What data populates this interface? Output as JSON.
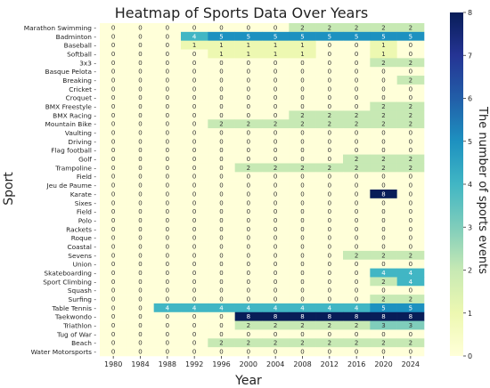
{
  "chart_data": {
    "type": "heatmap",
    "title": "Heatmap of Sports Data Over Years",
    "xlabel": "Year",
    "ylabel": "Sport",
    "colorbar_label": "The number of sports events",
    "colorbar_range": [
      0,
      8
    ],
    "colorbar_ticks": [
      "0",
      "1",
      "2",
      "3",
      "4",
      "5",
      "6",
      "7",
      "8"
    ],
    "colormap": [
      "#ffffd9",
      "#edf8b1",
      "#c7e9b4",
      "#7fcdbb",
      "#41b6c4",
      "#1d91c0",
      "#225ea8",
      "#253494",
      "#081d58"
    ],
    "x": [
      "1980",
      "1984",
      "1988",
      "1992",
      "1996",
      "2000",
      "2004",
      "2008",
      "2012",
      "2016",
      "2020",
      "2024"
    ],
    "y": [
      "Marathon Swimming",
      "Badminton",
      "Baseball",
      "Softball",
      "3x3",
      "Basque Pelota",
      "Breaking",
      "Cricket",
      "Croquet",
      "BMX Freestyle",
      "BMX Racing",
      "Mountain Bike",
      "Vaulting",
      "Driving",
      "Flag football",
      "Golf",
      "Trampoline",
      "Field",
      "Jeu de Paume",
      "Karate",
      "Sixes",
      "Field",
      "Polo",
      "Rackets",
      "Roque",
      "Coastal",
      "Sevens",
      "Union",
      "Skateboarding",
      "Sport Climbing",
      "Squash",
      "Surfing",
      "Table Tennis",
      "Taekwondo",
      "Triathlon",
      "Tug of War",
      "Beach",
      "Water Motorsports"
    ],
    "values": [
      [
        0,
        0,
        0,
        0,
        0,
        0,
        0,
        2,
        2,
        2,
        2,
        2
      ],
      [
        0,
        0,
        0,
        4,
        5,
        5,
        5,
        5,
        5,
        5,
        5,
        5
      ],
      [
        0,
        0,
        0,
        1,
        1,
        1,
        1,
        1,
        0,
        0,
        1,
        0
      ],
      [
        0,
        0,
        0,
        0,
        1,
        1,
        1,
        1,
        0,
        0,
        1,
        0
      ],
      [
        0,
        0,
        0,
        0,
        0,
        0,
        0,
        0,
        0,
        0,
        2,
        2
      ],
      [
        0,
        0,
        0,
        0,
        0,
        0,
        0,
        0,
        0,
        0,
        0,
        0
      ],
      [
        0,
        0,
        0,
        0,
        0,
        0,
        0,
        0,
        0,
        0,
        0,
        2
      ],
      [
        0,
        0,
        0,
        0,
        0,
        0,
        0,
        0,
        0,
        0,
        0,
        0
      ],
      [
        0,
        0,
        0,
        0,
        0,
        0,
        0,
        0,
        0,
        0,
        0,
        0
      ],
      [
        0,
        0,
        0,
        0,
        0,
        0,
        0,
        0,
        0,
        0,
        2,
        2
      ],
      [
        0,
        0,
        0,
        0,
        0,
        0,
        0,
        2,
        2,
        2,
        2,
        2
      ],
      [
        0,
        0,
        0,
        0,
        2,
        2,
        2,
        2,
        2,
        2,
        2,
        2
      ],
      [
        0,
        0,
        0,
        0,
        0,
        0,
        0,
        0,
        0,
        0,
        0,
        0
      ],
      [
        0,
        0,
        0,
        0,
        0,
        0,
        0,
        0,
        0,
        0,
        0,
        0
      ],
      [
        0,
        0,
        0,
        0,
        0,
        0,
        0,
        0,
        0,
        0,
        0,
        0
      ],
      [
        0,
        0,
        0,
        0,
        0,
        0,
        0,
        0,
        0,
        2,
        2,
        2
      ],
      [
        0,
        0,
        0,
        0,
        0,
        2,
        2,
        2,
        2,
        2,
        2,
        2
      ],
      [
        0,
        0,
        0,
        0,
        0,
        0,
        0,
        0,
        0,
        0,
        0,
        0
      ],
      [
        0,
        0,
        0,
        0,
        0,
        0,
        0,
        0,
        0,
        0,
        0,
        0
      ],
      [
        0,
        0,
        0,
        0,
        0,
        0,
        0,
        0,
        0,
        0,
        8,
        0
      ],
      [
        0,
        0,
        0,
        0,
        0,
        0,
        0,
        0,
        0,
        0,
        0,
        0
      ],
      [
        0,
        0,
        0,
        0,
        0,
        0,
        0,
        0,
        0,
        0,
        0,
        0
      ],
      [
        0,
        0,
        0,
        0,
        0,
        0,
        0,
        0,
        0,
        0,
        0,
        0
      ],
      [
        0,
        0,
        0,
        0,
        0,
        0,
        0,
        0,
        0,
        0,
        0,
        0
      ],
      [
        0,
        0,
        0,
        0,
        0,
        0,
        0,
        0,
        0,
        0,
        0,
        0
      ],
      [
        0,
        0,
        0,
        0,
        0,
        0,
        0,
        0,
        0,
        0,
        0,
        0
      ],
      [
        0,
        0,
        0,
        0,
        0,
        0,
        0,
        0,
        0,
        2,
        2,
        2
      ],
      [
        0,
        0,
        0,
        0,
        0,
        0,
        0,
        0,
        0,
        0,
        0,
        0
      ],
      [
        0,
        0,
        0,
        0,
        0,
        0,
        0,
        0,
        0,
        0,
        4,
        4
      ],
      [
        0,
        0,
        0,
        0,
        0,
        0,
        0,
        0,
        0,
        0,
        2,
        4
      ],
      [
        0,
        0,
        0,
        0,
        0,
        0,
        0,
        0,
        0,
        0,
        0,
        0
      ],
      [
        0,
        0,
        0,
        0,
        0,
        0,
        0,
        0,
        0,
        0,
        2,
        2
      ],
      [
        0,
        0,
        4,
        4,
        4,
        4,
        4,
        4,
        4,
        4,
        5,
        5
      ],
      [
        0,
        0,
        0,
        0,
        0,
        8,
        8,
        8,
        8,
        8,
        8,
        8
      ],
      [
        0,
        0,
        0,
        0,
        0,
        2,
        2,
        2,
        2,
        2,
        3,
        3
      ],
      [
        0,
        0,
        0,
        0,
        0,
        0,
        0,
        0,
        0,
        0,
        0,
        0
      ],
      [
        0,
        0,
        0,
        0,
        2,
        2,
        2,
        2,
        2,
        2,
        2,
        2
      ],
      [
        0,
        0,
        0,
        0,
        0,
        0,
        0,
        0,
        0,
        0,
        0,
        0
      ]
    ]
  }
}
